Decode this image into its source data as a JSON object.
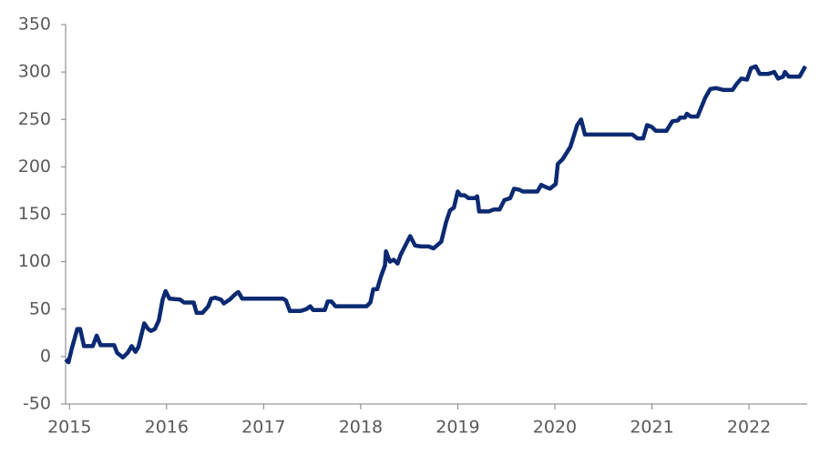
{
  "chart_data": {
    "type": "line",
    "color": "#0b2a72",
    "x": [
      2014.96,
      2014.99,
      2015.02,
      2015.08,
      2015.11,
      2015.15,
      2015.24,
      2015.28,
      2015.32,
      2015.46,
      2015.49,
      2015.55,
      2015.6,
      2015.64,
      2015.68,
      2015.71,
      2015.77,
      2015.81,
      2015.84,
      2015.88,
      2015.92,
      2015.96,
      2015.99,
      2016.03,
      2016.14,
      2016.18,
      2016.28,
      2016.31,
      2016.37,
      2016.43,
      2016.46,
      2016.5,
      2016.56,
      2016.59,
      2016.65,
      2016.71,
      2016.74,
      2016.78,
      2017.2,
      2017.23,
      2017.27,
      2017.38,
      2017.44,
      2017.48,
      2017.51,
      2017.63,
      2017.66,
      2017.7,
      2017.74,
      2018.06,
      2018.1,
      2018.13,
      2018.17,
      2018.21,
      2018.25,
      2018.26,
      2018.3,
      2018.34,
      2018.38,
      2018.41,
      2018.45,
      2018.51,
      2018.56,
      2018.62,
      2018.7,
      2018.75,
      2018.83,
      2018.88,
      2018.92,
      2018.96,
      2019.0,
      2019.03,
      2019.07,
      2019.11,
      2019.18,
      2019.2,
      2019.22,
      2019.32,
      2019.37,
      2019.43,
      2019.48,
      2019.54,
      2019.58,
      2019.63,
      2019.67,
      2019.82,
      2019.86,
      2019.9,
      2019.95,
      2020.01,
      2020.03,
      2020.08,
      2020.16,
      2020.23,
      2020.27,
      2020.31,
      2020.8,
      2020.85,
      2020.91,
      2020.95,
      2021.0,
      2021.04,
      2021.15,
      2021.21,
      2021.27,
      2021.29,
      2021.34,
      2021.36,
      2021.4,
      2021.47,
      2021.55,
      2021.6,
      2021.66,
      2021.74,
      2021.83,
      2021.87,
      2021.92,
      2021.98,
      2022.02,
      2022.07,
      2022.11,
      2022.2,
      2022.26,
      2022.3,
      2022.35,
      2022.37,
      2022.41,
      2022.52,
      2022.58
    ],
    "values": [
      -3,
      -6,
      7,
      29,
      29,
      11,
      11,
      22,
      12,
      12,
      4,
      -1,
      4,
      11,
      5,
      10,
      35,
      29,
      27,
      29,
      38,
      60,
      69,
      61,
      60,
      57,
      57,
      46,
      46,
      53,
      61,
      62,
      60,
      56,
      60,
      66,
      68,
      61,
      61,
      59,
      48,
      48,
      50,
      53,
      49,
      49,
      58,
      58,
      53,
      53,
      57,
      71,
      71,
      85,
      96,
      111,
      100,
      102,
      98,
      107,
      115,
      127,
      117,
      116,
      116,
      114,
      121,
      142,
      154,
      157,
      174,
      170,
      170,
      167,
      167,
      169,
      153,
      153,
      155,
      155,
      165,
      167,
      177,
      176,
      174,
      174,
      181,
      179,
      177,
      182,
      203,
      208,
      221,
      244,
      250,
      234,
      234,
      230,
      230,
      244,
      242,
      238,
      238,
      248,
      249,
      252,
      252,
      256,
      253,
      253,
      273,
      282,
      283,
      281,
      281,
      287,
      293,
      292,
      304,
      306,
      298,
      298,
      300,
      293,
      295,
      300,
      295,
      295,
      306
    ],
    "xlim": [
      2014.96,
      2022.6
    ],
    "xticks": [
      2015,
      2016,
      2017,
      2018,
      2019,
      2020,
      2021,
      2022
    ],
    "ylim": [
      -50,
      350
    ],
    "yticks": [
      -50,
      0,
      50,
      100,
      150,
      200,
      250,
      300,
      350
    ]
  }
}
